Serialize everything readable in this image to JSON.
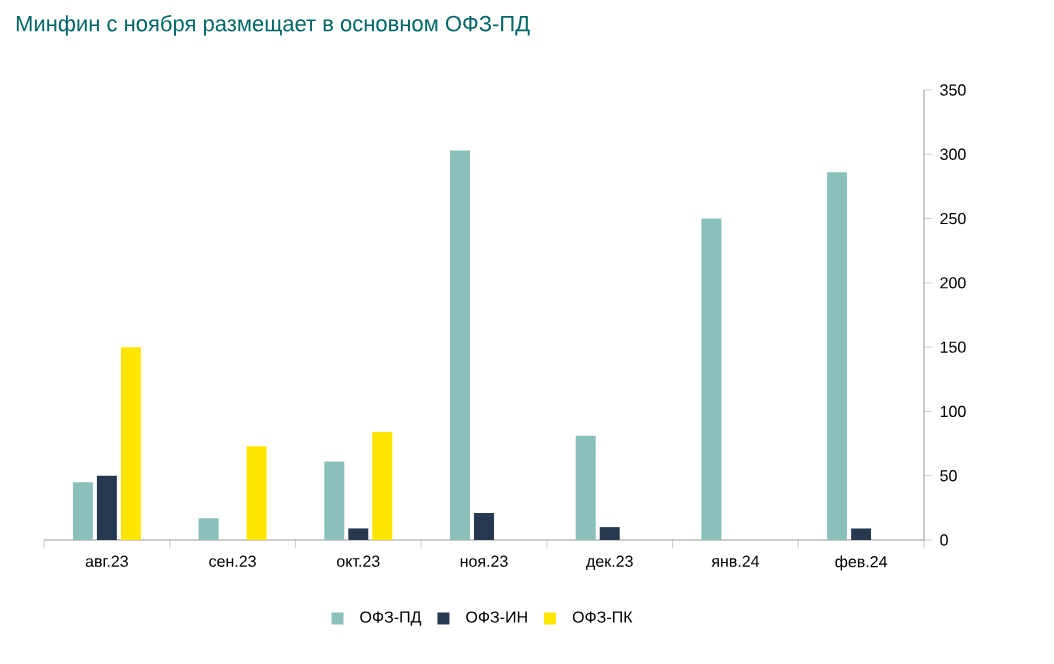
{
  "chart_data": {
    "type": "bar",
    "title": "Минфин с ноября размещает в основном ОФЗ-ПД",
    "categories": [
      "авг.23",
      "сен.23",
      "окт.23",
      "ноя.23",
      "дек.23",
      "янв.24",
      "фев.24"
    ],
    "series": [
      {
        "name": "ОФЗ-ПД",
        "color": "#8bbfbc",
        "values": [
          45,
          17,
          61,
          303,
          81,
          250,
          286
        ]
      },
      {
        "name": "ОФЗ-ИН",
        "color": "#253850",
        "values": [
          50,
          null,
          9,
          21,
          10,
          null,
          9
        ]
      },
      {
        "name": "ОФЗ-ПК",
        "color": "#ffe600",
        "values": [
          150,
          73,
          84,
          null,
          null,
          null,
          null
        ]
      }
    ],
    "ylim": [
      0,
      350
    ],
    "yticks": [
      0,
      50,
      100,
      150,
      200,
      250,
      300,
      350
    ],
    "legend": "bottom"
  }
}
